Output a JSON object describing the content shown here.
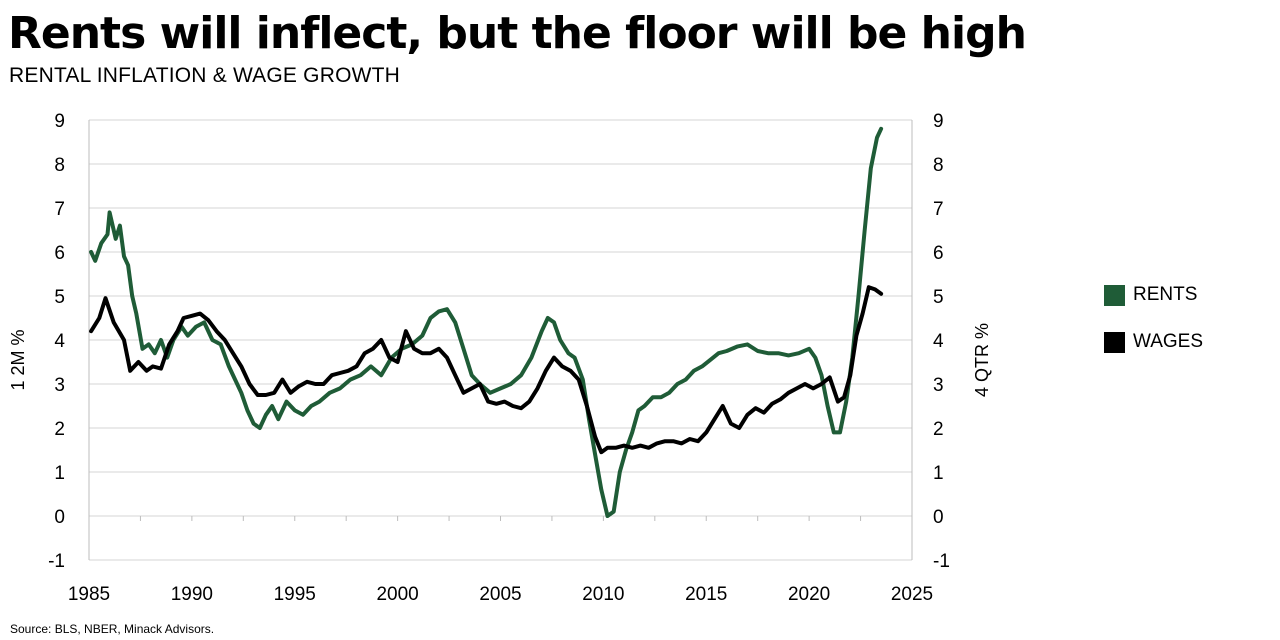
{
  "header": {
    "title": "Rents will inflect, but the floor will be high",
    "subtitle": "RENTAL INFLATION & WAGE GROWTH"
  },
  "footer": {
    "source": "Source: BLS, NBER, Minack Advisors."
  },
  "colors": {
    "rents": "#1f5c37",
    "wages": "#000000",
    "grid": "#d4d4d4",
    "axis": "#bdbdbd"
  },
  "chart_data": {
    "type": "line",
    "xlim": [
      1985,
      2025
    ],
    "x_ticks": [
      "1985",
      "1990",
      "1995",
      "2000",
      "2005",
      "2010",
      "2015",
      "2020",
      "2025"
    ],
    "x_tick_values": [
      1985,
      1990,
      1995,
      2000,
      2005,
      2010,
      2015,
      2020,
      2025
    ],
    "ylim": [
      -1,
      9
    ],
    "y_ticks": [
      "-1",
      "0",
      "1",
      "2",
      "3",
      "4",
      "5",
      "6",
      "7",
      "8",
      "9"
    ],
    "y_tick_values": [
      -1,
      0,
      1,
      2,
      3,
      4,
      5,
      6,
      7,
      8,
      9
    ],
    "ylabel_left": "1 2M %",
    "ylabel_right": "4 QTR %",
    "grid": true,
    "legend_position": "right",
    "series": [
      {
        "name": "RENTS",
        "x": [
          1985.1,
          1985.3,
          1985.6,
          1985.9,
          1986.0,
          1986.3,
          1986.5,
          1986.7,
          1986.9,
          1987.1,
          1987.3,
          1987.6,
          1987.9,
          1988.2,
          1988.5,
          1988.8,
          1989.1,
          1989.5,
          1989.8,
          1990.2,
          1990.6,
          1991.0,
          1991.4,
          1991.8,
          1992.1,
          1992.4,
          1992.7,
          1993.0,
          1993.3,
          1993.6,
          1993.9,
          1994.2,
          1994.6,
          1995.0,
          1995.4,
          1995.8,
          1996.2,
          1996.7,
          1997.2,
          1997.7,
          1998.2,
          1998.7,
          1999.2,
          1999.7,
          2000.2,
          2000.7,
          2001.2,
          2001.6,
          2002.0,
          2002.4,
          2002.8,
          2003.2,
          2003.6,
          2004.0,
          2004.5,
          2005.0,
          2005.5,
          2006.0,
          2006.5,
          2007.0,
          2007.3,
          2007.6,
          2007.9,
          2008.3,
          2008.6,
          2009.0,
          2009.3,
          2009.6,
          2009.9,
          2010.2,
          2010.5,
          2010.8,
          2011.1,
          2011.4,
          2011.7,
          2012.0,
          2012.4,
          2012.8,
          2013.2,
          2013.6,
          2014.0,
          2014.4,
          2014.8,
          2015.2,
          2015.6,
          2016.0,
          2016.5,
          2017.0,
          2017.5,
          2018.0,
          2018.5,
          2019.0,
          2019.5,
          2020.0,
          2020.3,
          2020.6,
          2020.9,
          2021.2,
          2021.5,
          2021.8,
          2022.1,
          2022.4,
          2022.7,
          2023.0,
          2023.3,
          2023.5
        ],
        "values": [
          6.0,
          5.8,
          6.2,
          6.4,
          6.9,
          6.3,
          6.6,
          5.9,
          5.7,
          5.0,
          4.6,
          3.8,
          3.9,
          3.7,
          4.0,
          3.6,
          4.0,
          4.3,
          4.1,
          4.3,
          4.4,
          4.0,
          3.9,
          3.4,
          3.1,
          2.8,
          2.4,
          2.1,
          2.0,
          2.3,
          2.5,
          2.2,
          2.6,
          2.4,
          2.3,
          2.5,
          2.6,
          2.8,
          2.9,
          3.1,
          3.2,
          3.4,
          3.2,
          3.6,
          3.8,
          3.9,
          4.1,
          4.5,
          4.65,
          4.7,
          4.4,
          3.8,
          3.2,
          3.0,
          2.8,
          2.9,
          3.0,
          3.2,
          3.6,
          4.2,
          4.5,
          4.4,
          4.0,
          3.7,
          3.6,
          3.1,
          2.2,
          1.4,
          0.6,
          0.0,
          0.1,
          1.0,
          1.5,
          1.9,
          2.4,
          2.5,
          2.7,
          2.7,
          2.8,
          3.0,
          3.1,
          3.3,
          3.4,
          3.55,
          3.7,
          3.75,
          3.85,
          3.9,
          3.75,
          3.7,
          3.7,
          3.65,
          3.7,
          3.8,
          3.6,
          3.2,
          2.5,
          1.9,
          1.9,
          2.6,
          3.6,
          5.0,
          6.5,
          7.9,
          8.6,
          8.8
        ]
      },
      {
        "name": "WAGES",
        "x": [
          1985.1,
          1985.5,
          1985.8,
          1986.2,
          1986.7,
          1987.0,
          1987.4,
          1987.8,
          1988.1,
          1988.5,
          1988.9,
          1989.3,
          1989.6,
          1990.0,
          1990.4,
          1990.8,
          1991.2,
          1991.6,
          1992.0,
          1992.4,
          1992.8,
          1993.2,
          1993.6,
          1994.0,
          1994.4,
          1994.8,
          1995.2,
          1995.6,
          1996.0,
          1996.4,
          1996.8,
          1997.2,
          1997.6,
          1998.0,
          1998.4,
          1998.8,
          1999.2,
          1999.6,
          2000.0,
          2000.4,
          2000.8,
          2001.2,
          2001.6,
          2002.0,
          2002.4,
          2002.8,
          2003.2,
          2003.6,
          2004.0,
          2004.4,
          2004.8,
          2005.2,
          2005.6,
          2006.0,
          2006.4,
          2006.8,
          2007.2,
          2007.6,
          2008.0,
          2008.4,
          2008.8,
          2009.2,
          2009.6,
          2009.9,
          2010.2,
          2010.6,
          2011.0,
          2011.4,
          2011.8,
          2012.2,
          2012.6,
          2013.0,
          2013.4,
          2013.8,
          2014.2,
          2014.6,
          2015.0,
          2015.4,
          2015.8,
          2016.2,
          2016.6,
          2017.0,
          2017.4,
          2017.8,
          2018.2,
          2018.6,
          2019.0,
          2019.4,
          2019.8,
          2020.2,
          2020.6,
          2021.0,
          2021.4,
          2021.7,
          2022.0,
          2022.3,
          2022.6,
          2022.9,
          2023.2,
          2023.5
        ],
        "values": [
          4.2,
          4.5,
          4.95,
          4.4,
          4.0,
          3.3,
          3.5,
          3.3,
          3.4,
          3.35,
          3.9,
          4.2,
          4.5,
          4.55,
          4.6,
          4.45,
          4.2,
          4.0,
          3.7,
          3.4,
          3.0,
          2.75,
          2.75,
          2.8,
          3.1,
          2.8,
          2.95,
          3.05,
          3.0,
          3.0,
          3.2,
          3.25,
          3.3,
          3.4,
          3.7,
          3.8,
          4.0,
          3.6,
          3.5,
          4.2,
          3.8,
          3.7,
          3.7,
          3.8,
          3.6,
          3.2,
          2.8,
          2.9,
          3.0,
          2.6,
          2.55,
          2.6,
          2.5,
          2.45,
          2.6,
          2.9,
          3.3,
          3.6,
          3.4,
          3.3,
          3.1,
          2.5,
          1.8,
          1.45,
          1.55,
          1.55,
          1.6,
          1.55,
          1.6,
          1.55,
          1.65,
          1.7,
          1.7,
          1.65,
          1.75,
          1.7,
          1.9,
          2.2,
          2.5,
          2.1,
          2.0,
          2.3,
          2.45,
          2.35,
          2.55,
          2.65,
          2.8,
          2.9,
          3.0,
          2.9,
          3.0,
          3.15,
          2.6,
          2.7,
          3.2,
          4.1,
          4.6,
          5.2,
          5.15,
          5.05
        ]
      }
    ]
  }
}
